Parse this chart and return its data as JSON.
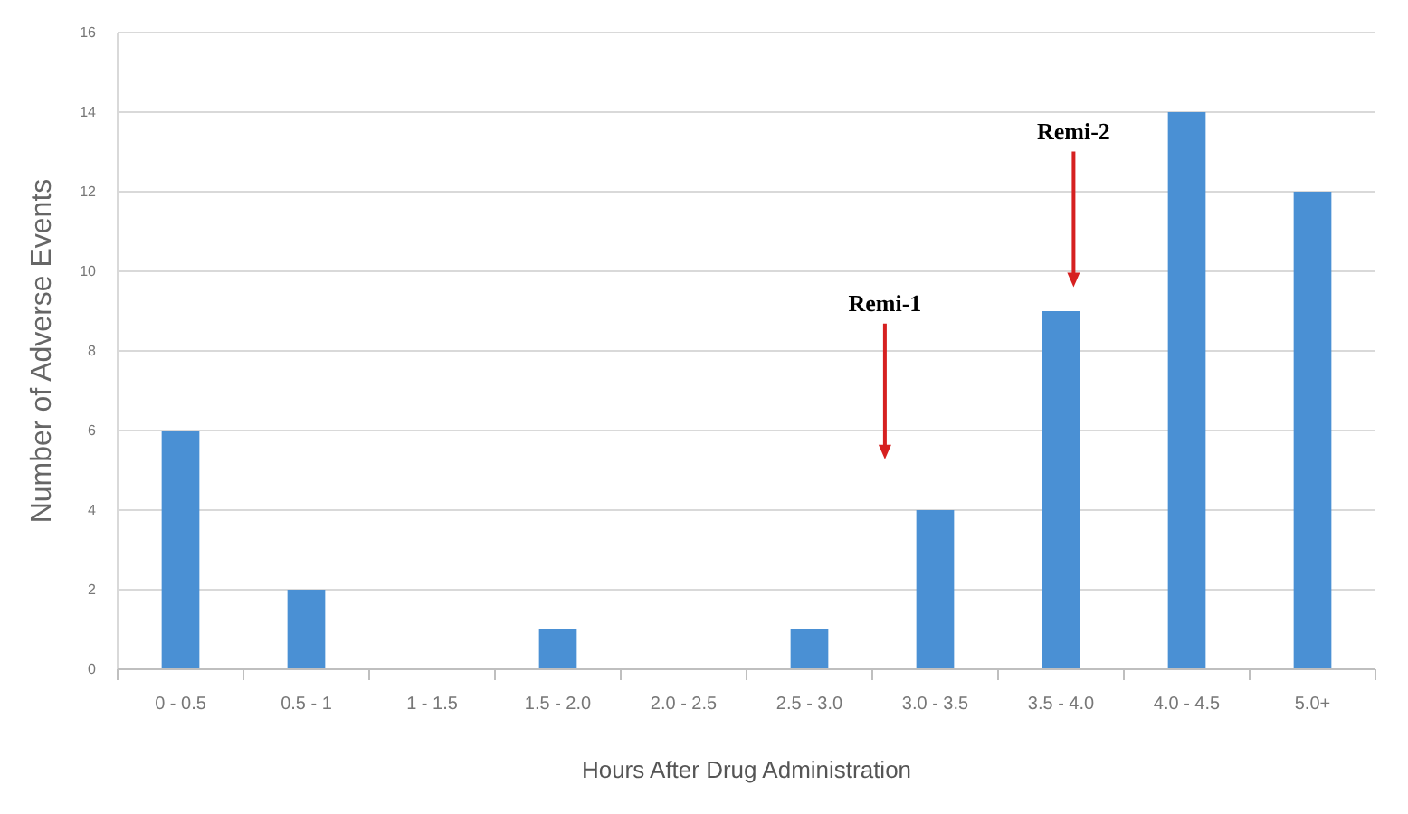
{
  "chart_data": {
    "type": "bar",
    "xlabel": "Hours After Drug Administration",
    "ylabel": "Number of Adverse Events",
    "categories": [
      "0 - 0.5",
      "0.5 - 1",
      "1 - 1.5",
      "1.5 - 2.0",
      "2.0 - 2.5",
      "2.5 - 3.0",
      "3.0 - 3.5",
      "3.5 - 4.0",
      "4.0 - 4.5",
      "5.0+"
    ],
    "values": [
      6,
      2,
      0,
      1,
      0,
      1,
      4,
      9,
      14,
      12
    ],
    "color": "#4a90d4",
    "ylim": [
      0,
      16
    ],
    "yticks": [
      0,
      2,
      4,
      6,
      8,
      10,
      12,
      14,
      16
    ],
    "grid": "y",
    "annotations": [
      "Remi-1",
      "Remi-2"
    ]
  }
}
